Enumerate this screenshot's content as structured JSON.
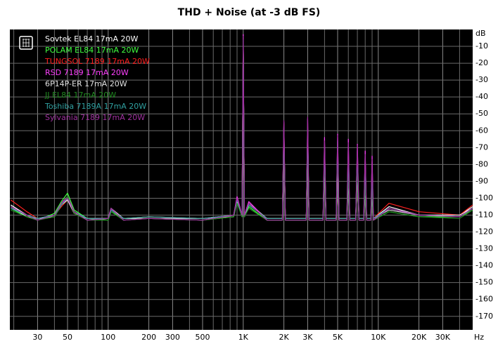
{
  "chart_data": {
    "type": "line",
    "title": "THD + Noise (at -3 dB FS)",
    "x_label": "Hz",
    "y_label": "dB",
    "log_x": true,
    "grid": true,
    "legend": "upper left",
    "xlim": [
      18.7,
      50000
    ],
    "ylim": [
      -178,
      0
    ],
    "xticks": [
      30,
      50,
      100,
      200,
      300,
      500,
      {
        "value": 1000,
        "label": "1K"
      },
      {
        "value": 2000,
        "label": "2K"
      },
      {
        "value": 3000,
        "label": "3K"
      },
      {
        "value": 5000,
        "label": "5K"
      },
      {
        "value": 10000,
        "label": "10K"
      },
      {
        "value": 20000,
        "label": "20K"
      },
      {
        "value": 30000,
        "label": "30K"
      }
    ],
    "xminorticks": [
      20,
      40,
      60,
      70,
      80,
      90,
      400,
      600,
      700,
      800,
      900,
      4000,
      6000,
      7000,
      8000,
      9000,
      40000
    ],
    "yticks": [
      -10,
      -20,
      -30,
      -40,
      -50,
      -60,
      -70,
      -80,
      -90,
      -100,
      -110,
      -120,
      -130,
      -140,
      -150,
      -160,
      -170
    ],
    "x": [
      19,
      25,
      30,
      40,
      45,
      50,
      56,
      70,
      100,
      105,
      130,
      200,
      500,
      850,
      900,
      980,
      1000,
      1020,
      1100,
      1500,
      1950,
      2000,
      2050,
      2930,
      3000,
      3070,
      3900,
      4000,
      4100,
      4880,
      5000,
      5120,
      5850,
      6000,
      6150,
      6800,
      7000,
      7200,
      7800,
      8000,
      8200,
      8800,
      9000,
      9200,
      12000,
      20000,
      40000,
      50000
    ],
    "series": [
      {
        "name": "Sovtek EL84 17mA 20W",
        "color": "#ffffff",
        "values": [
          -104,
          -110,
          -112,
          -110,
          -104,
          -100,
          -108,
          -112,
          -112,
          -106,
          -112,
          -111,
          -112,
          -110,
          -100,
          -110,
          -5,
          -110,
          -103,
          -112,
          -112,
          -58,
          -112,
          -112,
          -60,
          -112,
          -112,
          -75,
          -112,
          -112,
          -70,
          -112,
          -112,
          -85,
          -112,
          -112,
          -80,
          -112,
          -112,
          -90,
          -112,
          -112,
          -92,
          -112,
          -105,
          -110,
          -110,
          -105
        ]
      },
      {
        "name": "POLAM EL84 17mA 20W",
        "color": "#40ff40",
        "values": [
          -106,
          -111,
          -113,
          -109,
          -102,
          -97,
          -107,
          -112,
          -113,
          -108,
          -112,
          -112,
          -113,
          -111,
          -102,
          -111,
          -6,
          -111,
          -105,
          -113,
          -113,
          -60,
          -113,
          -113,
          -58,
          -113,
          -113,
          -78,
          -113,
          -113,
          -68,
          -113,
          -113,
          -88,
          -113,
          -113,
          -82,
          -113,
          -113,
          -95,
          -113,
          -113,
          -98,
          -113,
          -108,
          -111,
          -111,
          -107
        ]
      },
      {
        "name": "TUNGSOL 7189 17mA 20W",
        "color": "#ff2020",
        "values": [
          -101,
          -108,
          -112,
          -110,
          -105,
          -101,
          -109,
          -112,
          -112,
          -107,
          -112,
          -111,
          -112,
          -110,
          -101,
          -110,
          -5,
          -110,
          -104,
          -112,
          -112,
          -56,
          -112,
          -112,
          -62,
          -112,
          -112,
          -72,
          -112,
          -112,
          -74,
          -112,
          -112,
          -80,
          -112,
          -112,
          -84,
          -112,
          -112,
          -88,
          -112,
          -112,
          -90,
          -112,
          -103,
          -108,
          -110,
          -104
        ]
      },
      {
        "name": "RSD 7189 17mA 20W",
        "color": "#ff40ff",
        "values": [
          -105,
          -110,
          -113,
          -110,
          -103,
          -99,
          -108,
          -113,
          -112,
          -106,
          -113,
          -112,
          -113,
          -110,
          -99,
          -110,
          -3,
          -110,
          -102,
          -113,
          -113,
          -55,
          -113,
          -113,
          -53,
          -113,
          -113,
          -64,
          -113,
          -113,
          -62,
          -113,
          -113,
          -65,
          -113,
          -113,
          -68,
          -113,
          -113,
          -72,
          -113,
          -113,
          -75,
          -113,
          -106,
          -110,
          -111,
          -106
        ]
      },
      {
        "name": "6P14P-ER 17mA 20W",
        "color": "#e0e0e0",
        "values": [
          -105,
          -111,
          -112,
          -111,
          -104,
          -101,
          -109,
          -112,
          -112,
          -107,
          -112,
          -112,
          -112,
          -111,
          -102,
          -111,
          -7,
          -111,
          -104,
          -112,
          -112,
          -62,
          -112,
          -112,
          -65,
          -112,
          -112,
          -80,
          -112,
          -112,
          -78,
          -112,
          -112,
          -90,
          -112,
          -112,
          -86,
          -112,
          -112,
          -94,
          -112,
          -112,
          -96,
          -112,
          -107,
          -110,
          -110,
          -106
        ]
      },
      {
        "name": "JJ EL84 17mA 20W",
        "color": "#208a20",
        "values": [
          -107,
          -111,
          -113,
          -111,
          -104,
          -99,
          -109,
          -113,
          -113,
          -108,
          -113,
          -112,
          -113,
          -111,
          -103,
          -111,
          -6,
          -111,
          -106,
          -113,
          -113,
          -61,
          -113,
          -113,
          -63,
          -113,
          -113,
          -76,
          -113,
          -113,
          -72,
          -113,
          -113,
          -86,
          -113,
          -113,
          -83,
          -113,
          -113,
          -92,
          -113,
          -113,
          -94,
          -113,
          -108,
          -111,
          -112,
          -107
        ]
      },
      {
        "name": "Toshiba 7189A 17mA 20W",
        "color": "#30a0a0",
        "values": [
          -106,
          -110,
          -112,
          -110,
          -104,
          -100,
          -108,
          -112,
          -112,
          -107,
          -112,
          -111,
          -112,
          -110,
          -101,
          -110,
          -6,
          -110,
          -104,
          -112,
          -112,
          -57,
          -112,
          -112,
          -59,
          -112,
          -112,
          -70,
          -112,
          -112,
          -66,
          -112,
          -112,
          -76,
          -112,
          -112,
          -74,
          -112,
          -112,
          -82,
          -112,
          -112,
          -86,
          -112,
          -106,
          -110,
          -111,
          -106
        ]
      },
      {
        "name": "Sylvania 7189 17mA 20W",
        "color": "#a030a0",
        "values": [
          -105,
          -110,
          -113,
          -110,
          -103,
          -100,
          -108,
          -113,
          -112,
          -106,
          -113,
          -112,
          -113,
          -110,
          -100,
          -110,
          -4,
          -110,
          -103,
          -113,
          -113,
          -54,
          -113,
          -113,
          -52,
          -113,
          -113,
          -66,
          -113,
          -113,
          -63,
          -113,
          -113,
          -67,
          -113,
          -113,
          -69,
          -113,
          -113,
          -74,
          -113,
          -113,
          -77,
          -113,
          -106,
          -110,
          -111,
          -106
        ]
      }
    ]
  }
}
